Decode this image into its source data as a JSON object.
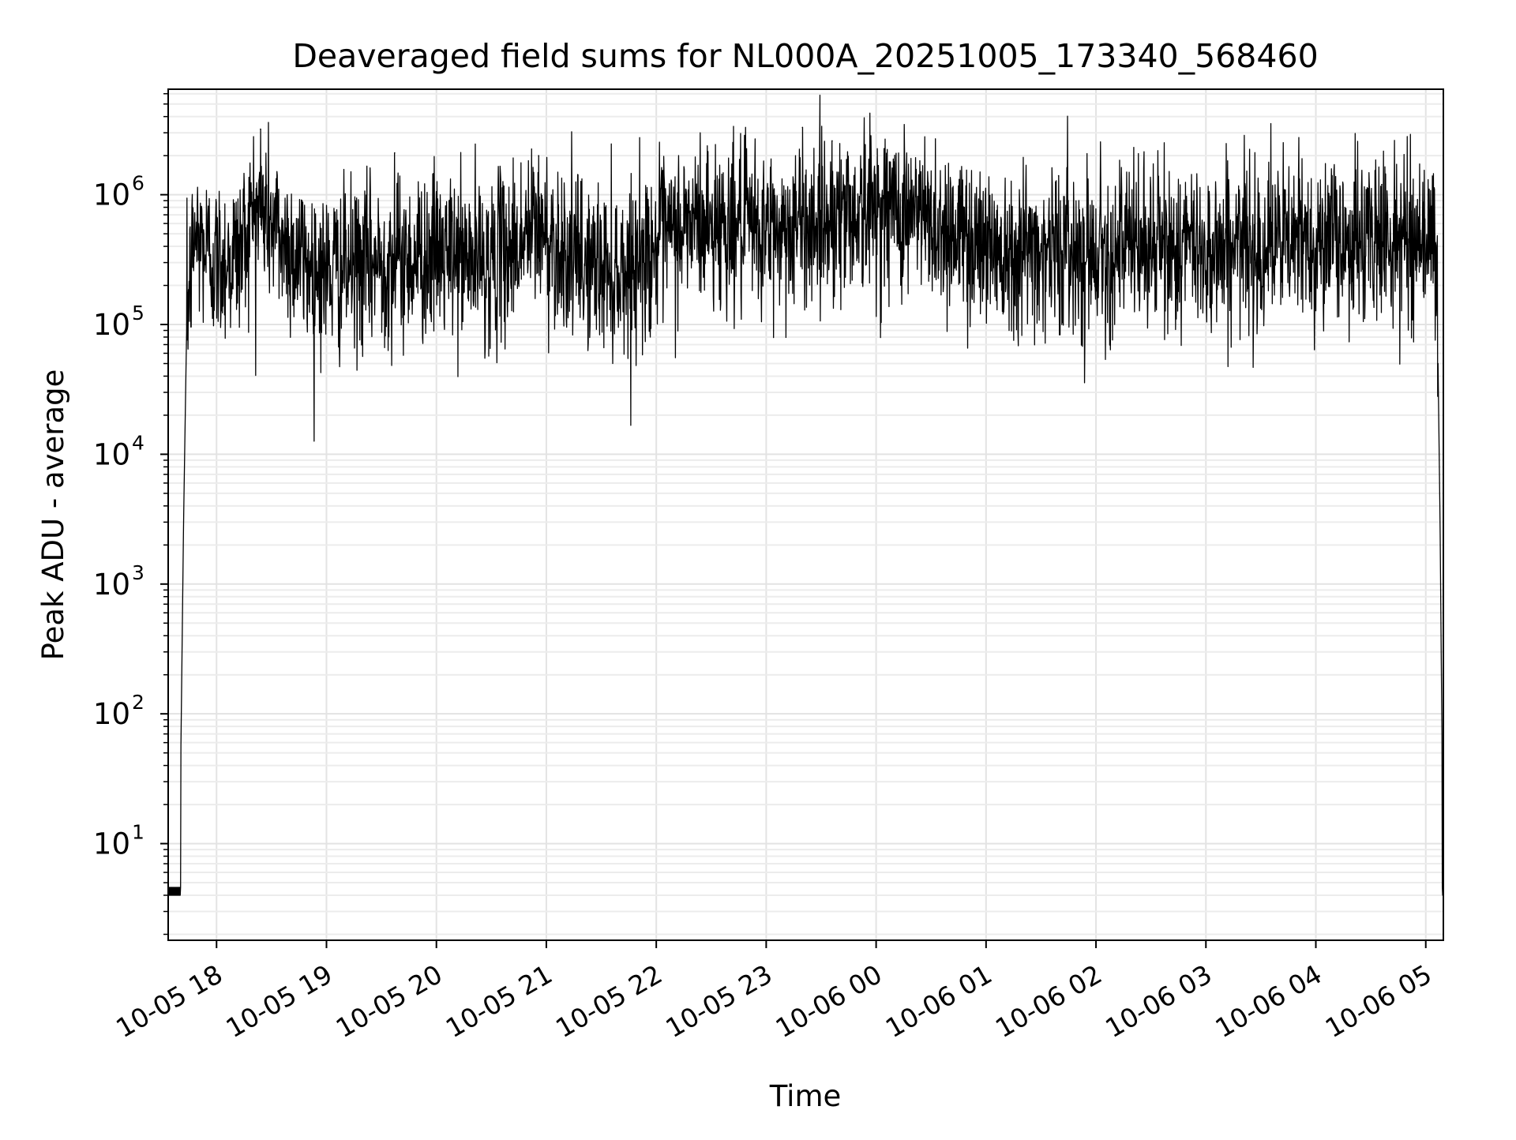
{
  "chart_data": {
    "type": "line",
    "title": "Deaveraged field sums for NL000A_20251005_173340_568460",
    "xlabel": "Time",
    "ylabel": "Peak ADU - average",
    "yscale": "log",
    "ylim": [
      1.8,
      6500000
    ],
    "xlim_hours_since_2025_10_05_00": [
      17.56,
      29.16
    ],
    "grid": true,
    "legend": "none",
    "x_ticks": [
      {
        "label": "10-05 18",
        "hour": 18
      },
      {
        "label": "10-05 19",
        "hour": 19
      },
      {
        "label": "10-05 20",
        "hour": 20
      },
      {
        "label": "10-05 21",
        "hour": 21
      },
      {
        "label": "10-05 22",
        "hour": 22
      },
      {
        "label": "10-05 23",
        "hour": 23
      },
      {
        "label": "10-06 00",
        "hour": 24
      },
      {
        "label": "10-06 01",
        "hour": 25
      },
      {
        "label": "10-06 02",
        "hour": 26
      },
      {
        "label": "10-06 03",
        "hour": 27
      },
      {
        "label": "10-06 04",
        "hour": 28
      },
      {
        "label": "10-06 05",
        "hour": 29
      }
    ],
    "y_ticks": [
      {
        "base": "10",
        "exp": "1",
        "value": 10
      },
      {
        "base": "10",
        "exp": "2",
        "value": 100
      },
      {
        "base": "10",
        "exp": "3",
        "value": 1000
      },
      {
        "base": "10",
        "exp": "4",
        "value": 10000
      },
      {
        "base": "10",
        "exp": "5",
        "value": 100000
      },
      {
        "base": "10",
        "exp": "6",
        "value": 1000000
      }
    ],
    "series": [
      {
        "name": "Peak ADU - average",
        "color": "#000000",
        "envelope": {
          "hours": [
            17.56,
            17.66,
            17.7,
            17.73,
            17.8,
            17.9,
            18.0,
            18.2,
            18.35,
            18.45,
            18.6,
            18.8,
            19.0,
            19.5,
            20.0,
            20.5,
            20.9,
            21.3,
            21.7,
            22.0,
            22.3,
            22.6,
            23.0,
            23.5,
            24.0,
            24.3,
            24.6,
            25.0,
            25.5,
            26.0,
            26.5,
            27.0,
            27.5,
            28.0,
            28.5,
            28.9,
            29.0,
            29.05,
            29.1,
            29.13,
            29.16
          ],
          "baseline": [
            4,
            4,
            3000,
            120000,
            500000,
            380000,
            300000,
            350000,
            800000,
            700000,
            450000,
            300000,
            250000,
            300000,
            350000,
            300000,
            550000,
            300000,
            260000,
            400000,
            600000,
            600000,
            500000,
            650000,
            800000,
            750000,
            550000,
            420000,
            380000,
            380000,
            400000,
            380000,
            420000,
            450000,
            450000,
            450000,
            500000,
            500000,
            300000,
            3000,
            4
          ]
        },
        "spikes": [
          {
            "hour": 18.4,
            "value": 3200000
          },
          {
            "hour": 19.62,
            "value": 2100000
          },
          {
            "hour": 20.93,
            "value": 2000000
          },
          {
            "hour": 23.33,
            "value": 3300000
          },
          {
            "hour": 23.6,
            "value": 2600000
          },
          {
            "hour": 25.66,
            "value": 1400000
          },
          {
            "hour": 28.6,
            "value": 1200000
          }
        ]
      }
    ]
  }
}
